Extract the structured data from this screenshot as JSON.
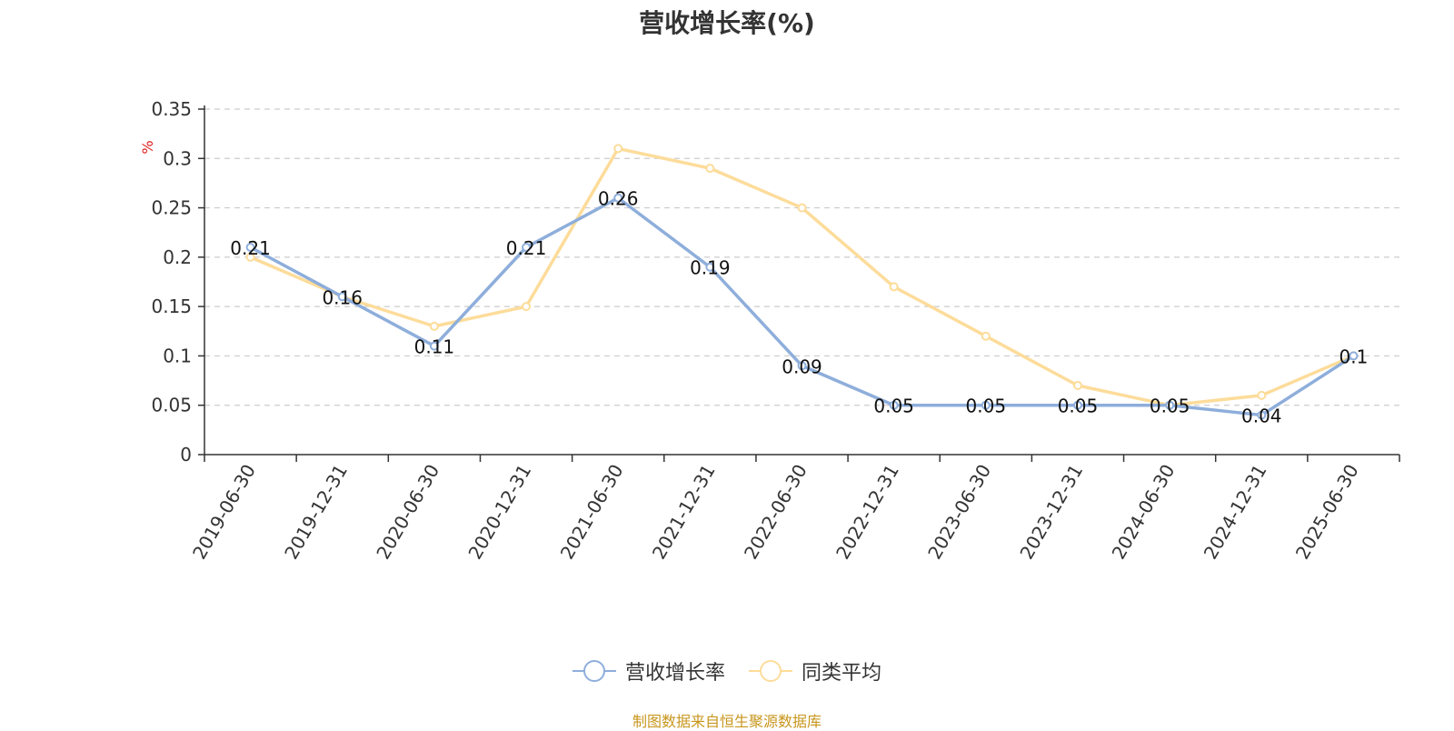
{
  "chart_data": {
    "type": "line",
    "title": "营收增长率(%)",
    "ylabel": "%",
    "xlabel": "",
    "ylim": [
      0,
      0.35
    ],
    "yticks": [
      0,
      0.05,
      0.1,
      0.15,
      0.2,
      0.25,
      0.3,
      0.35
    ],
    "ytick_labels": [
      "0",
      "0.05",
      "0.1",
      "0.15",
      "0.2",
      "0.25",
      "0.3",
      "0.35"
    ],
    "grid": true,
    "legend_position": "bottom-center",
    "categories": [
      "2019-06-30",
      "2019-12-31",
      "2020-06-30",
      "2020-12-31",
      "2021-06-30",
      "2021-12-31",
      "2022-06-30",
      "2022-12-31",
      "2023-06-30",
      "2023-12-31",
      "2024-06-30",
      "2024-12-31",
      "2025-06-30"
    ],
    "series": [
      {
        "name": "营收增长率",
        "color": "#8eaedb",
        "values": [
          0.21,
          0.16,
          0.11,
          0.21,
          0.26,
          0.19,
          0.09,
          0.05,
          0.05,
          0.05,
          0.05,
          0.04,
          0.1
        ],
        "labels": [
          "0.21",
          "0.16",
          "0.11",
          "0.21",
          "0.26",
          "0.19",
          "0.09",
          "0.05",
          "0.05",
          "0.05",
          "0.05",
          "0.04",
          "0.1"
        ]
      },
      {
        "name": "同类平均",
        "color": "#fddc9a",
        "values": [
          0.2,
          0.16,
          0.13,
          0.15,
          0.31,
          0.29,
          0.25,
          0.17,
          0.12,
          0.07,
          0.05,
          0.06,
          0.1
        ]
      }
    ]
  },
  "source_note": "制图数据来自恒生聚源数据库"
}
